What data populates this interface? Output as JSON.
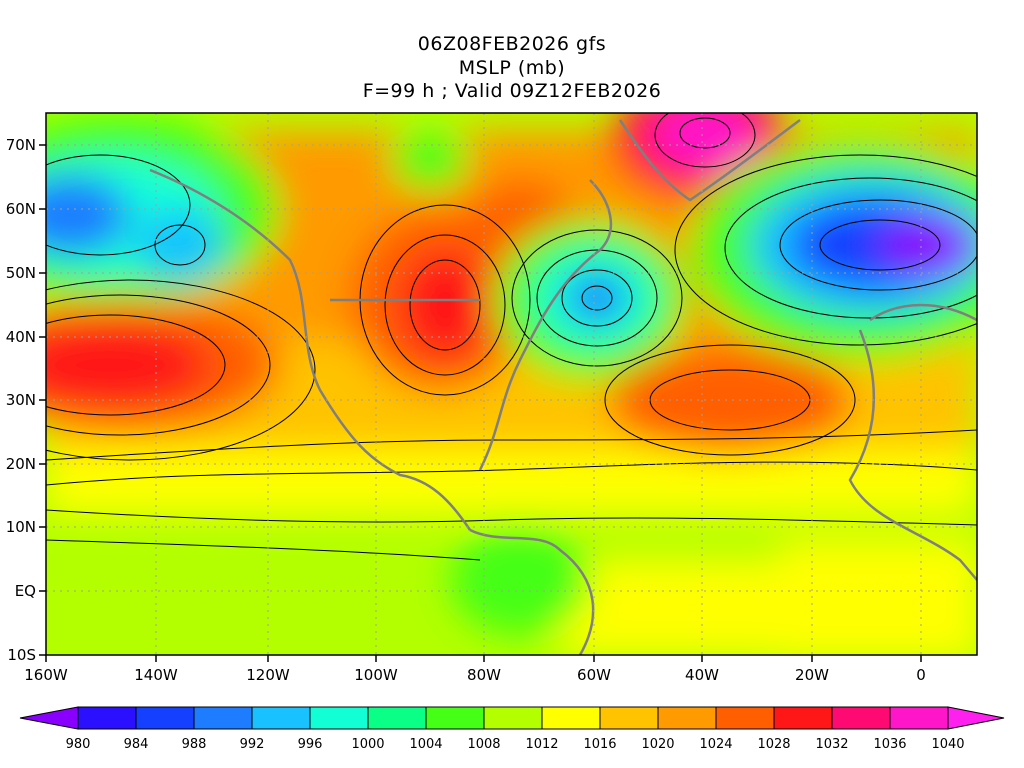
{
  "title": {
    "line1": "06Z08FEB2026 gfs",
    "line2": "MSLP (mb)",
    "line3": "F=99 h ; Valid 09Z12FEB2026"
  },
  "axes": {
    "x_ticks": [
      "160W",
      "140W",
      "120W",
      "100W",
      "80W",
      "60W",
      "40W",
      "20W",
      "0"
    ],
    "y_ticks": [
      "70N",
      "60N",
      "50N",
      "40N",
      "30N",
      "20N",
      "10N",
      "EQ",
      "10S"
    ]
  },
  "colorbar": {
    "labels": [
      "980",
      "984",
      "988",
      "992",
      "996",
      "1000",
      "1004",
      "1008",
      "1012",
      "1016",
      "1020",
      "1024",
      "1028",
      "1032",
      "1036",
      "1040"
    ],
    "colors": [
      "#8a00ff",
      "#2a10ff",
      "#1540ff",
      "#1e7dff",
      "#19c2ff",
      "#12ffd6",
      "#0aff86",
      "#45ff17",
      "#b3ff00",
      "#ffff00",
      "#ffc300",
      "#ff9a00",
      "#ff5f00",
      "#ff1616",
      "#ff0a72",
      "#ff16c8",
      "#ff20f0"
    ]
  }
}
